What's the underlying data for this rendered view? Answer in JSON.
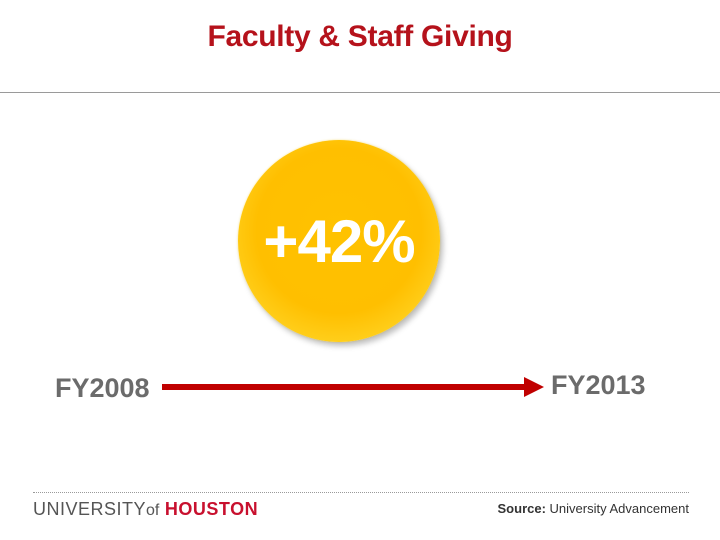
{
  "slide": {
    "title": "Faculty & Staff Giving",
    "highlight_value": "+42%",
    "timeline": {
      "start_label": "FY2008",
      "end_label": "FY2013"
    }
  },
  "footer": {
    "logo": {
      "university": "UNIVERSITY",
      "of": "of",
      "houston": "HOUSTON"
    },
    "source_label": "Source:",
    "source_value": "University Advancement"
  },
  "colors": {
    "title_red": "#b5121b",
    "arrow_red": "#c00000",
    "circle_gold": "#ffbf00",
    "label_gray": "#6b6b6b"
  }
}
